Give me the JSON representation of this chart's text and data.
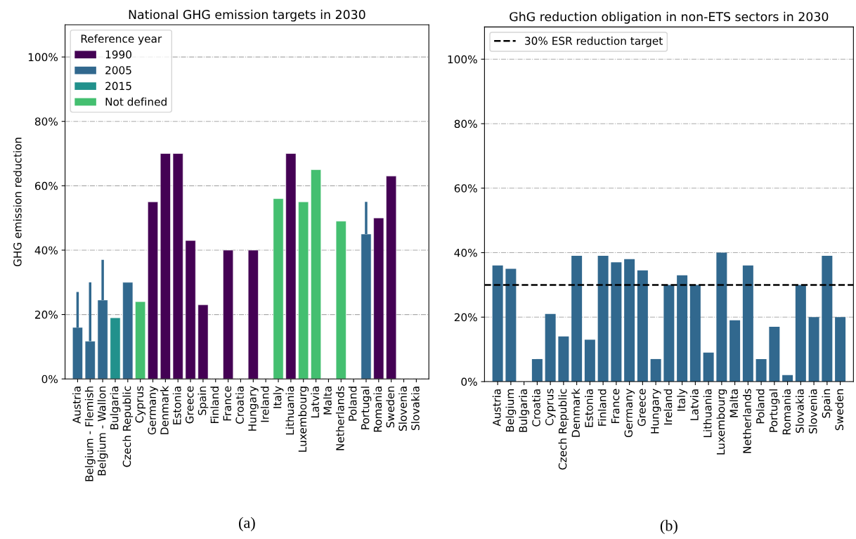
{
  "chart_data": [
    {
      "type": "bar",
      "title": "National GHG emission targets in 2030",
      "ylabel": "GHG emission reduction",
      "legend_title": "Reference year",
      "legend": "top left",
      "stacked": true,
      "grid": "y",
      "categories": [
        "Austria",
        "Belgium - Flemish",
        "Belgium - Wallon",
        "Bulgaria",
        "Czech Republic",
        "Cyprus",
        "Germany",
        "Denmark",
        "Estonia",
        "Greece",
        "Spain",
        "Finland",
        "France",
        "Croatia",
        "Hungary",
        "Ireland",
        "Italy",
        "Lithuania",
        "Luxembourg",
        "Latvia",
        "Malta",
        "Netherlands",
        "Poland",
        "Portugal",
        "Romania",
        "Sweden",
        "Slovenia",
        "Slovakia"
      ],
      "series": [
        {
          "name": "1990",
          "color": "#440154",
          "values": [
            null,
            null,
            null,
            null,
            null,
            null,
            55,
            70,
            70,
            43,
            23,
            null,
            40,
            null,
            40,
            null,
            null,
            70,
            null,
            null,
            null,
            null,
            null,
            null,
            50,
            63,
            null,
            null
          ]
        },
        {
          "name": "2005",
          "color": "#31688e",
          "values": [
            16,
            11.7,
            24.5,
            null,
            30,
            null,
            null,
            null,
            null,
            null,
            null,
            null,
            null,
            null,
            null,
            null,
            null,
            null,
            null,
            null,
            null,
            null,
            null,
            45,
            null,
            null,
            null,
            null
          ],
          "errors": [
            [
              16,
              27
            ],
            [
              11.7,
              30
            ],
            [
              24.5,
              37
            ],
            null,
            null,
            null,
            null,
            null,
            null,
            null,
            null,
            null,
            null,
            null,
            null,
            null,
            null,
            null,
            null,
            null,
            null,
            null,
            null,
            [
              45,
              55
            ],
            null,
            null,
            null,
            null
          ]
        },
        {
          "name": "2015",
          "color": "#21918c",
          "values": [
            null,
            null,
            null,
            19,
            null,
            null,
            null,
            null,
            null,
            null,
            null,
            null,
            null,
            null,
            null,
            null,
            null,
            null,
            null,
            null,
            null,
            null,
            null,
            null,
            null,
            null,
            null,
            null
          ]
        },
        {
          "name": "Not defined",
          "color": "#44bf70",
          "values": [
            null,
            null,
            null,
            null,
            null,
            24,
            null,
            null,
            null,
            null,
            null,
            null,
            null,
            null,
            null,
            null,
            56,
            null,
            55,
            65,
            null,
            49,
            null,
            null,
            null,
            null,
            null,
            null
          ]
        }
      ],
      "ylim": [
        0,
        110
      ],
      "yticks": [
        {
          "value": 0,
          "label": "0%"
        },
        {
          "value": 20,
          "label": "20%"
        },
        {
          "value": 40,
          "label": "40%"
        },
        {
          "value": 60,
          "label": "60%"
        },
        {
          "value": 80,
          "label": "80%"
        },
        {
          "value": 100,
          "label": "100%"
        }
      ],
      "annotations": [
        "(a)"
      ]
    },
    {
      "type": "bar",
      "title": "GhG reduction obligation in non-ETS sectors in 2030",
      "legend": "top left",
      "grid": "y",
      "categories": [
        "Austria",
        "Belgium",
        "Bulgaria",
        "Croatia",
        "Cyprus",
        "Czech Republic",
        "Denmark",
        "Estonia",
        "Finland",
        "France",
        "Germany",
        "Greece",
        "Hungary",
        "Ireland",
        "Italy",
        "Latvia",
        "Lithuania",
        "Luxembourg",
        "Malta",
        "Netherlands",
        "Poland",
        "Portugal",
        "Romania",
        "Slovakia",
        "Slovenia",
        "Spain",
        "Sweden"
      ],
      "series": [
        {
          "color": "#31688e",
          "values": [
            36,
            35,
            0,
            7,
            21,
            14,
            39,
            13,
            39,
            37,
            38,
            34.5,
            7,
            30,
            33,
            30,
            9,
            40,
            19,
            36,
            7,
            17,
            2,
            30,
            20,
            39,
            20
          ]
        }
      ],
      "ref_lines": [
        {
          "axis": "y",
          "value": 30,
          "label": "30% ESR reduction target",
          "color": "#000000",
          "line_style": "dashed"
        }
      ],
      "ylim": [
        0,
        110
      ],
      "yticks": [
        {
          "value": 0,
          "label": "0%"
        },
        {
          "value": 20,
          "label": "20%"
        },
        {
          "value": 40,
          "label": "40%"
        },
        {
          "value": 60,
          "label": "60%"
        },
        {
          "value": 80,
          "label": "80%"
        },
        {
          "value": 100,
          "label": "100%"
        }
      ],
      "annotations": [
        "(b)"
      ]
    }
  ]
}
